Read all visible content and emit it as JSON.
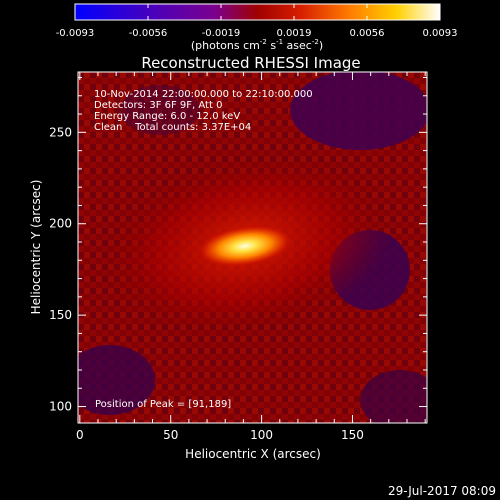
{
  "colorbar": {
    "ticks": [
      "-0.0093",
      "-0.0056",
      "-0.0019",
      "0.0019",
      "0.0056",
      "0.0093"
    ],
    "units_label": "(photons cm",
    "units_exp1": "-2",
    "units_s": " s",
    "units_exp2": "-1",
    "units_asec": " asec",
    "units_exp3": "-2",
    "units_close": ")",
    "stops": [
      "#0000ff",
      "#2a00d8",
      "#5500b0",
      "#7a0090",
      "#a00000",
      "#d82000",
      "#ff7a00",
      "#ffd000",
      "#ffffff"
    ]
  },
  "plot": {
    "title": "Reconstructed RHESSI Image",
    "info_lines": [
      "10-Nov-2014 22:00:00.000 to 22:10:00.000",
      "Detectors: 3F 6F 9F, Att 0",
      "Energy Range: 6.0 - 12.0 keV",
      "Clean    Total counts: 3.37E+04"
    ],
    "peak_label": "Position of Peak = [91,189]",
    "xlabel": "Heliocentric X (arcsec)",
    "ylabel": "Heliocentric Y (arcsec)",
    "xticks": [
      "0",
      "50",
      "100",
      "150"
    ],
    "yticks": [
      "100",
      "150",
      "200",
      "250"
    ],
    "xlim": [
      -1,
      191
    ],
    "ylim": [
      91,
      283
    ],
    "peak": [
      91,
      189
    ]
  },
  "timestamp": "29-Jul-2017 08:09"
}
